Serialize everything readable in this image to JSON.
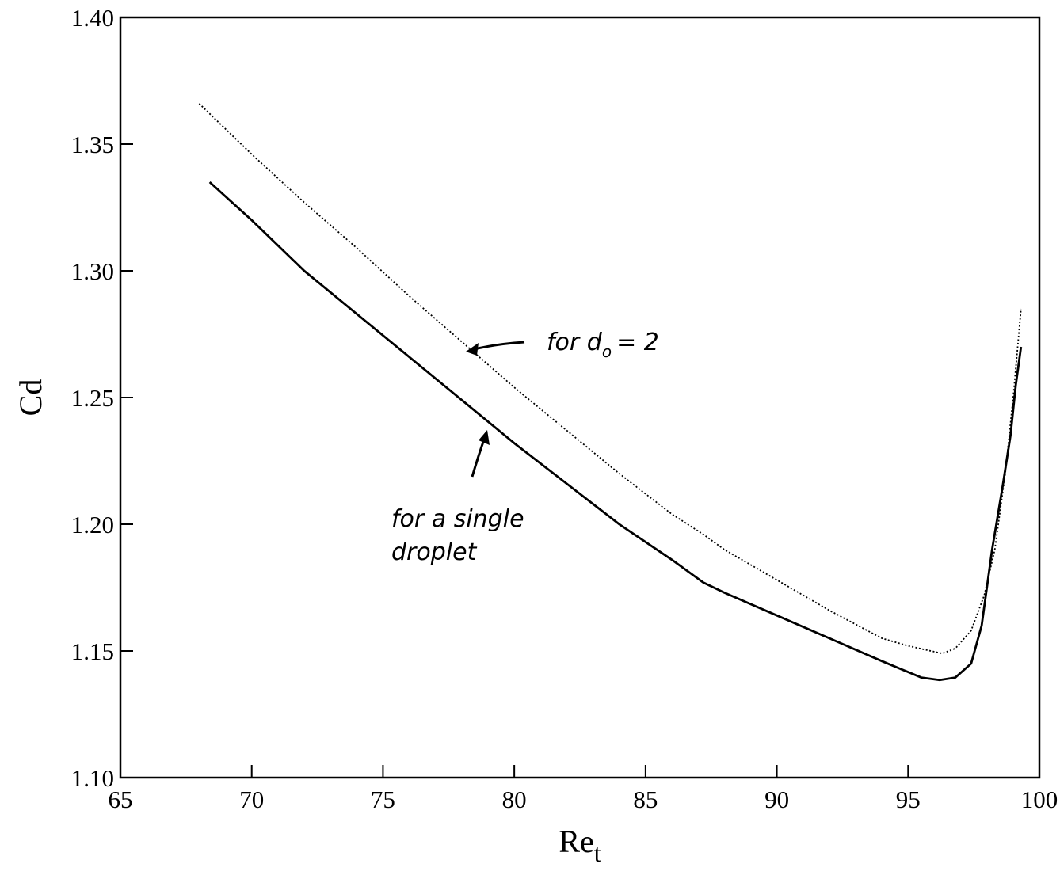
{
  "chart_data": {
    "type": "line",
    "title": "",
    "xlabel": "Re",
    "xlabel_sub": "t",
    "ylabel": "Cd",
    "xlim": [
      65,
      100
    ],
    "ylim": [
      1.1,
      1.4
    ],
    "xticks": [
      "65",
      "70",
      "75",
      "80",
      "85",
      "90",
      "95",
      "100"
    ],
    "yticks": [
      "1.10",
      "1.15",
      "1.20",
      "1.25",
      "1.30",
      "1.35",
      "1.40"
    ],
    "grid": false,
    "series": [
      {
        "style": "solid",
        "color": "#000000",
        "x": [
          68.4,
          70,
          72,
          74,
          76,
          78,
          80,
          82,
          84,
          86,
          87.2,
          88,
          90,
          92,
          94,
          95.5,
          96.2,
          96.8,
          97.4,
          97.8,
          98.2,
          98.6,
          98.9,
          99.1,
          99.3
        ],
        "y": [
          1.335,
          1.32,
          1.3,
          1.283,
          1.266,
          1.249,
          1.232,
          1.216,
          1.2,
          1.186,
          1.177,
          1.173,
          1.164,
          1.155,
          1.146,
          1.1395,
          1.1385,
          1.1395,
          1.145,
          1.16,
          1.19,
          1.215,
          1.235,
          1.255,
          1.27
        ]
      },
      {
        "style": "dotted",
        "color": "#000000",
        "x": [
          68,
          70,
          72,
          74,
          76,
          78,
          80,
          82,
          84,
          86,
          87.2,
          88,
          90,
          92,
          94,
          95,
          96.3,
          96.8,
          97.4,
          97.9,
          98.3,
          98.7,
          99.0,
          99.3
        ],
        "y": [
          1.366,
          1.346,
          1.327,
          1.309,
          1.29,
          1.272,
          1.254,
          1.237,
          1.22,
          1.204,
          1.196,
          1.19,
          1.178,
          1.166,
          1.155,
          1.152,
          1.149,
          1.151,
          1.158,
          1.172,
          1.19,
          1.22,
          1.25,
          1.285
        ]
      }
    ],
    "annotations": [
      {
        "lines": [
          "for d",
          "o",
          "= 2"
        ],
        "target_series": 1
      },
      {
        "lines": [
          "for a single",
          "droplet"
        ],
        "target_series": 0
      }
    ]
  }
}
